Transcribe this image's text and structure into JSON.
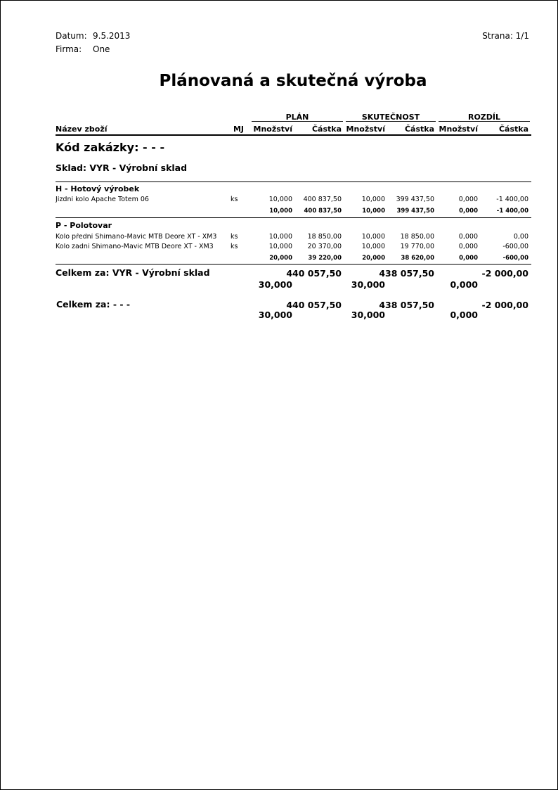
{
  "header": {
    "date_label": "Datum:",
    "date": "9.5.2013",
    "company_label": "Firma:",
    "company": "One",
    "page_label": "Strana: 1/1"
  },
  "title": "Plánovaná a skutečná výroba",
  "columns": {
    "groups": [
      "PLÁN",
      "SKUTEČNOST",
      "ROZDÍL"
    ],
    "name": "Název zboží",
    "unit": "MJ",
    "qty": "Množství",
    "amount": "Částka"
  },
  "order_code": "Kód zakázky: - - -",
  "warehouse": "Sklad: VYR - Výrobní sklad",
  "groups": [
    {
      "label": "H - Hotový výrobek",
      "rows": [
        [
          "Jízdní kolo Apache Totem 06",
          "ks",
          "10,000",
          "400 837,50",
          "10,000",
          "399 437,50",
          "0,000",
          "-1 400,00"
        ]
      ],
      "subtotal": [
        "10,000",
        "400 837,50",
        "10,000",
        "399 437,50",
        "0,000",
        "-1 400,00"
      ]
    },
    {
      "label": "P - Polotovar",
      "rows": [
        [
          "Kolo přední Shimano-Mavic MTB Deore XT - XM3",
          "ks",
          "10,000",
          "18 850,00",
          "10,000",
          "18 850,00",
          "0,000",
          "0,00"
        ],
        [
          "Kolo zadní Shimano-Mavic MTB Deore XT - XM3",
          "ks",
          "10,000",
          "20 370,00",
          "10,000",
          "19 770,00",
          "0,000",
          "-600,00"
        ]
      ],
      "subtotal": [
        "20,000",
        "39 220,00",
        "20,000",
        "38 620,00",
        "0,000",
        "-600,00"
      ]
    }
  ],
  "totals": [
    {
      "label": "Celkem za: VYR - Výrobní sklad",
      "amounts": [
        "440 057,50",
        "438 057,50",
        "-2 000,00"
      ],
      "qtys": [
        "30,000",
        "30,000",
        "0,000"
      ]
    },
    {
      "label": "Celkem za: - - -",
      "amounts": [
        "440 057,50",
        "438 057,50",
        "-2 000,00"
      ],
      "qtys": [
        "30,000",
        "30,000",
        "0,000"
      ]
    }
  ]
}
